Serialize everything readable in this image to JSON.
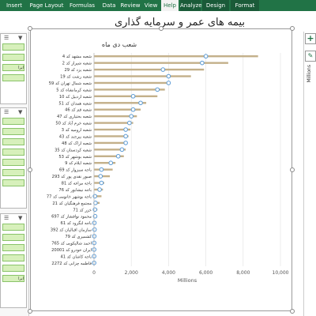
{
  "ribbon": {
    "tabs": [
      "Insert",
      "Page Layout",
      "Formulas",
      "Data",
      "Review",
      "View",
      "Help",
      "Analyze",
      "Design",
      "Format"
    ],
    "active_tab": "Help",
    "context_tabs": [
      "Analyze",
      "Design",
      "Format"
    ]
  },
  "sheet_title": "بیمه های عمر و سرمایه گذاری",
  "right_pane": {
    "side_label": "Millions",
    "plus_icon": "plus-icon",
    "brush_icon": "brush-icon"
  },
  "slicers": [
    {
      "items": [
        "",
        "",
        "ايرا",
        ""
      ]
    },
    {
      "items": [
        "",
        "",
        "",
        "",
        "",
        "",
        ""
      ]
    },
    {
      "items": [
        "",
        "",
        "",
        "",
        "",
        "ایرا"
      ]
    }
  ],
  "chart_data": {
    "type": "bar",
    "title": "شعب دی ماه",
    "xlabel": "Millions",
    "xlim": [
      0,
      10000
    ],
    "ticks": [
      "0",
      "2,000",
      "4,000",
      "6,000",
      "8,000",
      "10,000"
    ],
    "tick_values": [
      0,
      2000,
      4000,
      6000,
      8000,
      10000
    ],
    "categories": [
      "شعبه مشهد کد 4",
      "شعبه شیراز کد 2",
      "شعبه یزد کد 29",
      "شعبه رشت کد 19",
      "شعبه شمال تهران کد 59",
      "شعبه کرمانشاه کد 5",
      "شعبه اردبیل کد 10",
      "شعبه همدان کد 51",
      "شعبه قم کد 46",
      "شعبه بختیاری کد 47",
      "شعبه خرم آباد کد 50",
      "شعبه ارومیه کد 3",
      "شعبه بیرجند کد 43",
      "شعبه اراک کد 48",
      "شعبه کردستان کد 35",
      "شعبه بوشهر کد 53",
      "شعبه ایلام کد 9",
      "باجه سبزوار کد 69",
      "صبور نقدی پور کد 293",
      "باجه مراغه کد 81",
      "باجه نیشابور کد 76",
      "باجه بوشهر خانومی کد 77",
      "مجتمع فرهنگیان کد 21",
      "خزر کد 71",
      "محمود نوافشار کد 697",
      "باجه لنگرود کد 61",
      "سازمان اقبالیان کد 392",
      "کشمیری کد 79",
      "احمد شالیکویی کد 765",
      "ایران خودرو کد 20001",
      "باجه کاشان کد 41",
      "فاطمه چزانی کد 2272"
    ],
    "values": [
      8800,
      7200,
      5900,
      5200,
      4000,
      3800,
      3400,
      2800,
      2500,
      2300,
      2100,
      1950,
      1850,
      1800,
      1700,
      1600,
      1150,
      1000,
      850,
      550,
      480,
      400,
      300,
      180,
      100,
      50,
      40,
      25,
      15,
      10,
      8,
      5
    ],
    "marker_values": [
      6000,
      5800,
      3700,
      4000,
      4000,
      3400,
      2100,
      2500,
      2100,
      2000,
      1900,
      1700,
      1700,
      1700,
      1500,
      1300,
      900,
      400,
      350,
      400,
      300,
      50,
      80,
      50,
      60,
      20,
      30,
      15,
      10,
      8,
      6,
      5
    ],
    "bar_color": "#c3b08a",
    "marker_color": "#5b9bd5"
  }
}
